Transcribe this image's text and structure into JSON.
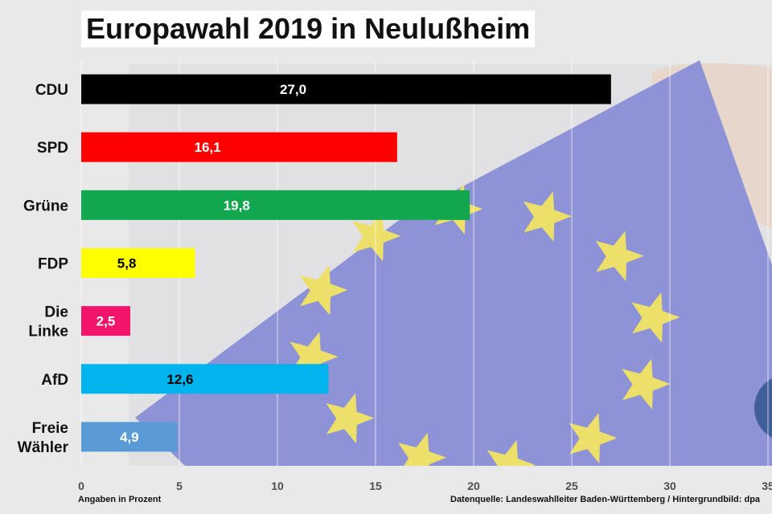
{
  "colors": {
    "flag_blue": "#8e92d6",
    "star_yellow": "#ecdf6a",
    "text": "#111111"
  },
  "chart_data": {
    "type": "bar",
    "orientation": "horizontal",
    "title": "Europawahl 2019 in Neulußheim",
    "xlabel": "Angaben in Prozent",
    "source": "Datenquelle: Landeswahlleiter Baden-Württemberg  / Hintergrundbild: dpa",
    "xlim": [
      0,
      35
    ],
    "xticks": [
      0,
      5,
      10,
      15,
      20,
      25,
      30,
      35
    ],
    "grid": true,
    "categories": [
      {
        "label": [
          "CDU"
        ],
        "value": 27.0,
        "value_label": "27,0",
        "color": "#000000",
        "label_color": "#ffffff"
      },
      {
        "label": [
          "SPD"
        ],
        "value": 16.1,
        "value_label": "16,1",
        "color": "#ff0000",
        "label_color": "#ffffff"
      },
      {
        "label": [
          "Grüne"
        ],
        "value": 19.8,
        "value_label": "19,8",
        "color": "#11a74f",
        "label_color": "#ffffff"
      },
      {
        "label": [
          "FDP"
        ],
        "value": 5.8,
        "value_label": "5,8",
        "color": "#ffff00",
        "label_color": "#000000"
      },
      {
        "label": [
          "Die",
          "Linke"
        ],
        "value": 2.5,
        "value_label": "2,5",
        "color": "#f0146a",
        "label_color": "#ffffff"
      },
      {
        "label": [
          "AfD"
        ],
        "value": 12.6,
        "value_label": "12,6",
        "color": "#00b4ee",
        "label_color": "#000000"
      },
      {
        "label": [
          "Freie",
          "Wähler"
        ],
        "value": 4.9,
        "value_label": "4,9",
        "color": "#5b9bd5",
        "label_color": "#ffffff"
      }
    ]
  }
}
